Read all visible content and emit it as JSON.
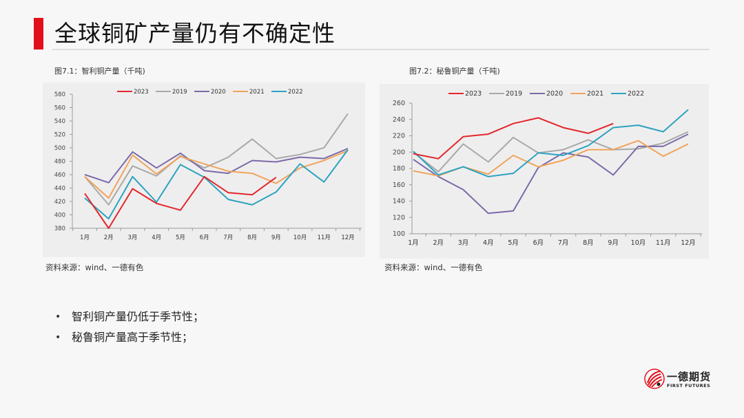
{
  "header": {
    "title": "全球铜矿产量仍有不确定性"
  },
  "figures": [
    {
      "caption": "图7.1：智利铜产量（千吨)",
      "source": "资料来源：wind、一德有色"
    },
    {
      "caption": "图7.2：秘鲁铜产量（千吨)",
      "source": "资料来源：wind、一德有色"
    }
  ],
  "bullets": [
    "智利铜产量仍低于季节性；",
    "秘鲁铜产量高于季节性；"
  ],
  "logo": {
    "cn": "一德期货",
    "en": "FIRST FUTURES"
  },
  "colors": {
    "accent": "#e2101b",
    "s2023": "#e3262b",
    "s2019": "#a9a9a9",
    "s2020": "#7a6aa8",
    "s2021": "#f0a35a",
    "s2022": "#2aa3c1"
  },
  "chart_data": [
    {
      "type": "line",
      "title": "图7.1：智利铜产量（千吨)",
      "xlabel": "",
      "ylabel": "千吨",
      "categories": [
        "1月",
        "2月",
        "3月",
        "4月",
        "5月",
        "6月",
        "7月",
        "8月",
        "9月",
        "10月",
        "11月",
        "12月"
      ],
      "ylim": [
        380,
        580
      ],
      "yticks": [
        380,
        400,
        420,
        440,
        460,
        480,
        500,
        520,
        540,
        560,
        580
      ],
      "legend_position": "top",
      "grid": false,
      "series": [
        {
          "name": "2023",
          "color": "#e3262b",
          "values": [
            432,
            380,
            439,
            417,
            407,
            457,
            433,
            430,
            456
          ]
        },
        {
          "name": "2019",
          "color": "#a9a9a9",
          "values": [
            457,
            415,
            473,
            458,
            488,
            470,
            486,
            513,
            484,
            490,
            500,
            551
          ]
        },
        {
          "name": "2020",
          "color": "#7a6aa8",
          "values": [
            460,
            448,
            494,
            470,
            492,
            466,
            462,
            481,
            479,
            486,
            484,
            499
          ]
        },
        {
          "name": "2021",
          "color": "#f0a35a",
          "values": [
            457,
            425,
            489,
            461,
            487,
            476,
            465,
            462,
            447,
            470,
            481,
            496
          ]
        },
        {
          "name": "2022",
          "color": "#2aa3c1",
          "values": [
            425,
            394,
            457,
            419,
            475,
            456,
            423,
            415,
            434,
            476,
            449,
            497
          ]
        }
      ]
    },
    {
      "type": "line",
      "title": "图7.2：秘鲁铜产量（千吨)",
      "xlabel": "",
      "ylabel": "千吨",
      "categories": [
        "1月",
        "2月",
        "3月",
        "4月",
        "5月",
        "6月",
        "7月",
        "8月",
        "9月",
        "10月",
        "11月",
        "12月"
      ],
      "ylim": [
        100,
        260
      ],
      "yticks": [
        100,
        120,
        140,
        160,
        180,
        200,
        220,
        240,
        260
      ],
      "legend_position": "top",
      "grid": false,
      "series": [
        {
          "name": "2023",
          "color": "#e3262b",
          "values": [
            198,
            192,
            219,
            222,
            235,
            242,
            230,
            223,
            235
          ]
        },
        {
          "name": "2019",
          "color": "#a9a9a9",
          "values": [
            200,
            176,
            210,
            188,
            218,
            199,
            203,
            215,
            203,
            204,
            211,
            225
          ]
        },
        {
          "name": "2020",
          "color": "#7a6aa8",
          "values": [
            191,
            170,
            154,
            125,
            128,
            181,
            199,
            194,
            172,
            207,
            207,
            222
          ]
        },
        {
          "name": "2021",
          "color": "#f0a35a",
          "values": [
            177,
            171,
            182,
            173,
            196,
            182,
            190,
            203,
            203,
            214,
            195,
            210
          ]
        },
        {
          "name": "2022",
          "color": "#2aa3c1",
          "values": [
            201,
            172,
            182,
            170,
            174,
            199,
            196,
            208,
            230,
            233,
            225,
            252
          ]
        }
      ]
    }
  ]
}
